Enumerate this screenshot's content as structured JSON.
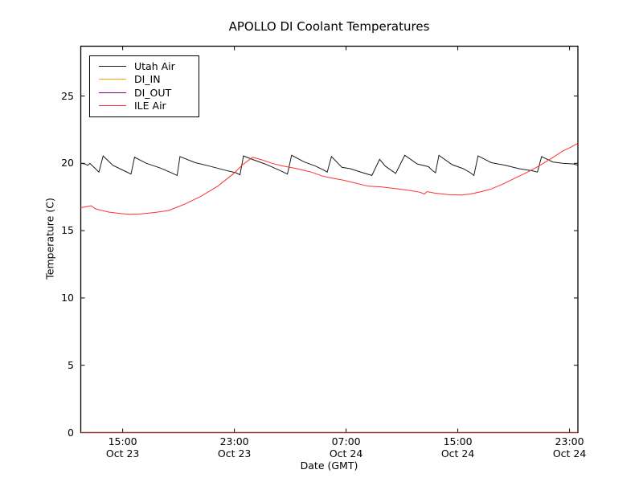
{
  "chart_data": {
    "type": "line",
    "title": "APOLLO DI Coolant Temperatures",
    "xlabel": "Date (GMT)",
    "ylabel": "Temperature (C)",
    "x_unit": "hours since Oct 23 12:00 GMT",
    "xlim": [
      0,
      35.6
    ],
    "ylim": [
      0,
      28.7
    ],
    "grid": false,
    "legend_position": "upper left",
    "axis_color": "#000000",
    "background_color": "#ffffff",
    "yticks": [
      0,
      5,
      10,
      15,
      20,
      25
    ],
    "xticks": [
      {
        "t": 3,
        "time": "15:00",
        "date": "Oct 23"
      },
      {
        "t": 11,
        "time": "23:00",
        "date": "Oct 23"
      },
      {
        "t": 19,
        "time": "07:00",
        "date": "Oct 24"
      },
      {
        "t": 27,
        "time": "15:00",
        "date": "Oct 24"
      },
      {
        "t": 35,
        "time": "23:00",
        "date": "Oct 24"
      }
    ],
    "series": [
      {
        "name": "Utah Air",
        "color": "#1a1a1a",
        "width": 1,
        "points": [
          [
            0,
            20.0
          ],
          [
            0.3,
            19.95
          ],
          [
            0.5,
            19.85
          ],
          [
            0.65,
            20.0
          ],
          [
            1.05,
            19.6
          ],
          [
            1.3,
            19.35
          ],
          [
            1.6,
            20.55
          ],
          [
            2.3,
            19.85
          ],
          [
            2.8,
            19.6
          ],
          [
            3.4,
            19.3
          ],
          [
            3.6,
            19.2
          ],
          [
            3.85,
            20.45
          ],
          [
            4.7,
            20.0
          ],
          [
            5.7,
            19.65
          ],
          [
            6.6,
            19.25
          ],
          [
            6.9,
            19.1
          ],
          [
            7.1,
            20.5
          ],
          [
            8.2,
            20.05
          ],
          [
            9.2,
            19.8
          ],
          [
            10.3,
            19.5
          ],
          [
            11.1,
            19.3
          ],
          [
            11.4,
            19.15
          ],
          [
            11.65,
            20.55
          ],
          [
            12.4,
            20.25
          ],
          [
            13.2,
            19.95
          ],
          [
            14.2,
            19.5
          ],
          [
            14.8,
            19.2
          ],
          [
            15.1,
            20.6
          ],
          [
            16.0,
            20.1
          ],
          [
            16.8,
            19.8
          ],
          [
            17.4,
            19.5
          ],
          [
            17.65,
            19.35
          ],
          [
            17.95,
            20.5
          ],
          [
            18.7,
            19.7
          ],
          [
            19.3,
            19.6
          ],
          [
            20.2,
            19.3
          ],
          [
            20.85,
            19.1
          ],
          [
            21.4,
            20.3
          ],
          [
            21.8,
            19.8
          ],
          [
            22.55,
            19.25
          ],
          [
            23.2,
            20.6
          ],
          [
            24.1,
            19.95
          ],
          [
            24.9,
            19.75
          ],
          [
            25.2,
            19.45
          ],
          [
            25.4,
            19.3
          ],
          [
            25.65,
            20.6
          ],
          [
            26.6,
            19.9
          ],
          [
            27.4,
            19.6
          ],
          [
            27.9,
            19.3
          ],
          [
            28.15,
            19.1
          ],
          [
            28.45,
            20.55
          ],
          [
            29.4,
            20.05
          ],
          [
            30.4,
            19.85
          ],
          [
            31.4,
            19.6
          ],
          [
            32.3,
            19.45
          ],
          [
            32.7,
            19.35
          ],
          [
            33.0,
            20.5
          ],
          [
            33.8,
            20.1
          ],
          [
            34.5,
            20.0
          ],
          [
            35.3,
            19.95
          ],
          [
            35.6,
            19.85
          ]
        ]
      },
      {
        "name": "DI_IN",
        "color": "#ffa500",
        "width": 1.5,
        "points": [
          [
            0,
            0
          ],
          [
            35.6,
            0
          ]
        ]
      },
      {
        "name": "DI_OUT",
        "color": "#800080",
        "width": 1,
        "points": [
          [
            0,
            0
          ],
          [
            35.6,
            0
          ]
        ]
      },
      {
        "name": "ILE Air",
        "color": "#ff3030",
        "width": 1,
        "points": [
          [
            0,
            16.7
          ],
          [
            0.4,
            16.78
          ],
          [
            0.75,
            16.85
          ],
          [
            1.0,
            16.65
          ],
          [
            1.3,
            16.55
          ],
          [
            2.0,
            16.38
          ],
          [
            2.8,
            16.27
          ],
          [
            3.5,
            16.22
          ],
          [
            4.3,
            16.25
          ],
          [
            5.3,
            16.35
          ],
          [
            6.3,
            16.5
          ],
          [
            7.4,
            16.95
          ],
          [
            8.6,
            17.55
          ],
          [
            9.8,
            18.3
          ],
          [
            10.9,
            19.2
          ],
          [
            11.6,
            19.9
          ],
          [
            12.3,
            20.45
          ],
          [
            13.0,
            20.25
          ],
          [
            13.7,
            20.0
          ],
          [
            14.5,
            19.8
          ],
          [
            15.5,
            19.6
          ],
          [
            16.5,
            19.35
          ],
          [
            17.3,
            19.05
          ],
          [
            18.0,
            18.9
          ],
          [
            18.8,
            18.75
          ],
          [
            19.6,
            18.55
          ],
          [
            20.6,
            18.3
          ],
          [
            21.5,
            18.25
          ],
          [
            22.3,
            18.15
          ],
          [
            23.1,
            18.05
          ],
          [
            23.8,
            17.95
          ],
          [
            24.3,
            17.85
          ],
          [
            24.6,
            17.72
          ],
          [
            24.8,
            17.9
          ],
          [
            25.3,
            17.8
          ],
          [
            26.3,
            17.68
          ],
          [
            27.3,
            17.65
          ],
          [
            27.9,
            17.72
          ],
          [
            28.7,
            17.9
          ],
          [
            29.4,
            18.1
          ],
          [
            30.2,
            18.45
          ],
          [
            31.1,
            18.9
          ],
          [
            32.0,
            19.35
          ],
          [
            32.8,
            19.8
          ],
          [
            33.6,
            20.3
          ],
          [
            34.5,
            20.9
          ],
          [
            35.1,
            21.2
          ],
          [
            35.6,
            21.5
          ]
        ]
      }
    ]
  }
}
